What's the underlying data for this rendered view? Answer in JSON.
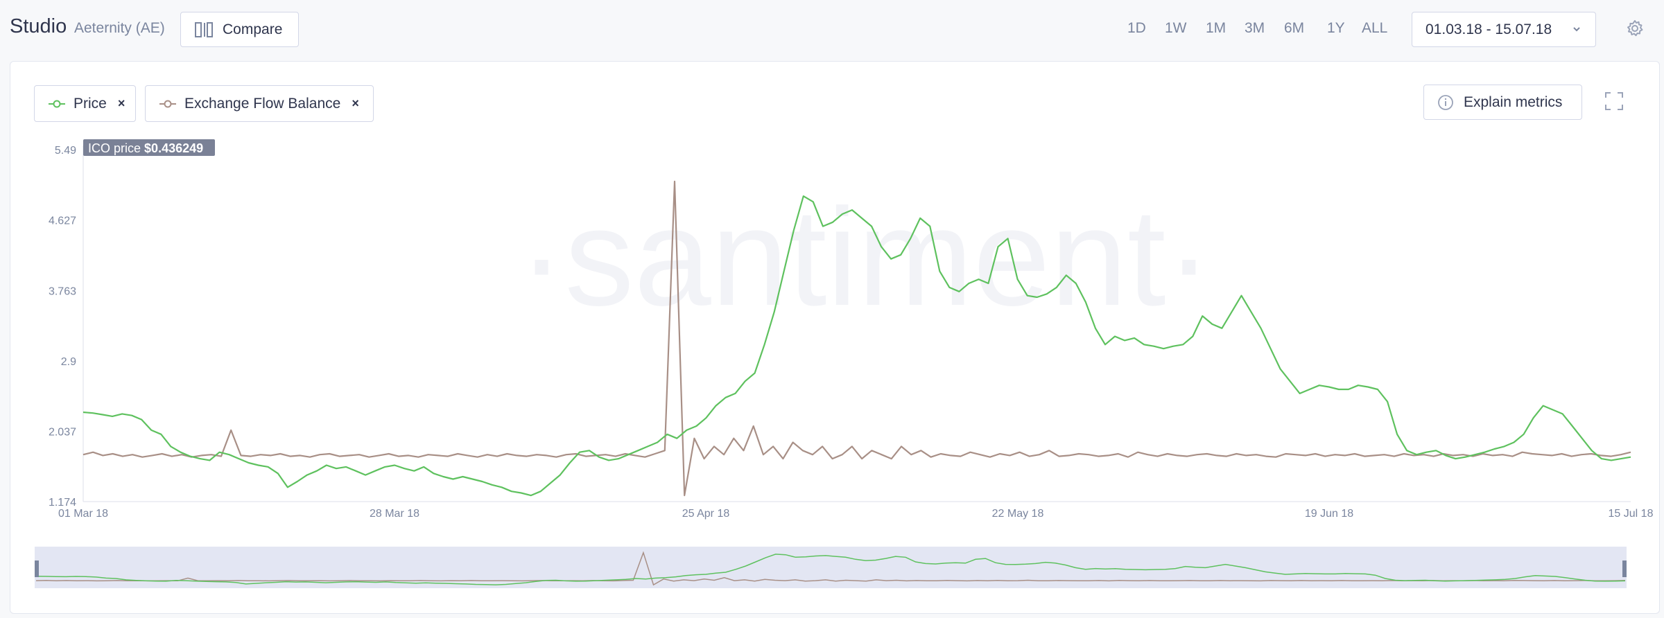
{
  "app": {
    "title": "Studio",
    "project": "Aeternity (AE)",
    "compare_label": "Compare"
  },
  "time_ranges": [
    "1D",
    "1W",
    "1M",
    "3M",
    "6M",
    "1Y",
    "ALL"
  ],
  "date_range": "01.03.18 - 15.07.18",
  "metrics": [
    {
      "label": "Price",
      "color": "#5ec15e"
    },
    {
      "label": "Exchange Flow Balance",
      "color": "#a88f86"
    }
  ],
  "explain_label": "Explain metrics",
  "ico_label": "ICO price",
  "ico_value": "$0.436249",
  "watermark": "·santiment·",
  "icons": [
    "compare-icon",
    "chevron-down-icon",
    "gear-icon",
    "close-icon",
    "info-icon",
    "fullscreen-icon"
  ],
  "chart_data": {
    "type": "line",
    "x_start": "2018-03-01",
    "x_end": "2018-07-15",
    "ylim": [
      1.174,
      5.49
    ],
    "y_ticks": [
      "5.49",
      "4.627",
      "3.763",
      "2.9",
      "2.037",
      "1.174"
    ],
    "x_ticks": [
      "01 Mar 18",
      "28 Mar 18",
      "25 Apr 18",
      "22 May 18",
      "19 Jun 18",
      "15 Jul 18"
    ],
    "grid": false,
    "series": [
      {
        "name": "Price",
        "color": "#5ec15e",
        "values": [
          2.27,
          2.26,
          2.24,
          2.22,
          2.25,
          2.23,
          2.18,
          2.05,
          2.0,
          1.85,
          1.78,
          1.73,
          1.7,
          1.68,
          1.78,
          1.75,
          1.7,
          1.65,
          1.62,
          1.6,
          1.52,
          1.35,
          1.42,
          1.5,
          1.55,
          1.62,
          1.58,
          1.6,
          1.55,
          1.5,
          1.55,
          1.6,
          1.62,
          1.58,
          1.55,
          1.6,
          1.52,
          1.48,
          1.45,
          1.48,
          1.45,
          1.42,
          1.38,
          1.35,
          1.3,
          1.28,
          1.25,
          1.3,
          1.4,
          1.5,
          1.65,
          1.78,
          1.8,
          1.72,
          1.68,
          1.7,
          1.75,
          1.8,
          1.85,
          1.9,
          2.0,
          1.95,
          2.05,
          2.1,
          2.2,
          2.35,
          2.45,
          2.5,
          2.65,
          2.75,
          3.1,
          3.5,
          4.0,
          4.5,
          4.92,
          4.85,
          4.55,
          4.6,
          4.7,
          4.75,
          4.65,
          4.55,
          4.3,
          4.15,
          4.2,
          4.4,
          4.65,
          4.55,
          4.0,
          3.8,
          3.75,
          3.85,
          3.9,
          3.85,
          4.3,
          4.4,
          3.9,
          3.7,
          3.68,
          3.72,
          3.8,
          3.95,
          3.85,
          3.62,
          3.3,
          3.1,
          3.2,
          3.15,
          3.18,
          3.1,
          3.08,
          3.05,
          3.08,
          3.1,
          3.2,
          3.45,
          3.35,
          3.3,
          3.5,
          3.7,
          3.5,
          3.3,
          3.05,
          2.8,
          2.65,
          2.5,
          2.55,
          2.6,
          2.58,
          2.55,
          2.55,
          2.6,
          2.58,
          2.55,
          2.4,
          2.0,
          1.8,
          1.75,
          1.78,
          1.8,
          1.74,
          1.7,
          1.72,
          1.75,
          1.78,
          1.82,
          1.85,
          1.9,
          2.0,
          2.2,
          2.35,
          2.3,
          2.25,
          2.1,
          1.95,
          1.8,
          1.7,
          1.68,
          1.7,
          1.72
        ]
      },
      {
        "name": "Exchange Flow Balance",
        "color": "#a88f86",
        "values": [
          1.75,
          1.78,
          1.74,
          1.76,
          1.73,
          1.75,
          1.72,
          1.74,
          1.76,
          1.73,
          1.75,
          1.72,
          1.74,
          1.75,
          1.73,
          2.05,
          1.74,
          1.73,
          1.75,
          1.74,
          1.76,
          1.73,
          1.74,
          1.72,
          1.75,
          1.76,
          1.73,
          1.74,
          1.75,
          1.72,
          1.74,
          1.76,
          1.73,
          1.74,
          1.72,
          1.75,
          1.74,
          1.73,
          1.76,
          1.74,
          1.72,
          1.75,
          1.73,
          1.76,
          1.74,
          1.73,
          1.75,
          1.74,
          1.72,
          1.75,
          1.76,
          1.73,
          1.74,
          1.75,
          1.73,
          1.76,
          1.74,
          1.72,
          1.76,
          1.8,
          5.1,
          1.25,
          1.95,
          1.7,
          1.85,
          1.75,
          1.95,
          1.8,
          2.1,
          1.75,
          1.85,
          1.7,
          1.9,
          1.8,
          1.75,
          1.85,
          1.7,
          1.75,
          1.85,
          1.7,
          1.8,
          1.75,
          1.7,
          1.85,
          1.75,
          1.8,
          1.72,
          1.76,
          1.74,
          1.73,
          1.78,
          1.75,
          1.72,
          1.76,
          1.74,
          1.78,
          1.73,
          1.75,
          1.8,
          1.73,
          1.74,
          1.76,
          1.75,
          1.73,
          1.74,
          1.76,
          1.72,
          1.78,
          1.75,
          1.73,
          1.76,
          1.74,
          1.73,
          1.75,
          1.76,
          1.74,
          1.73,
          1.76,
          1.74,
          1.75,
          1.73,
          1.72,
          1.76,
          1.75,
          1.74,
          1.76,
          1.73,
          1.75,
          1.74,
          1.76,
          1.73,
          1.74,
          1.75,
          1.73,
          1.76,
          1.74,
          1.75,
          1.73,
          1.76,
          1.74,
          1.75,
          1.73,
          1.76,
          1.74,
          1.75,
          1.73,
          1.78,
          1.76,
          1.75,
          1.74,
          1.76,
          1.73,
          1.75,
          1.76,
          1.74,
          1.73,
          1.75,
          1.78
        ]
      }
    ]
  }
}
